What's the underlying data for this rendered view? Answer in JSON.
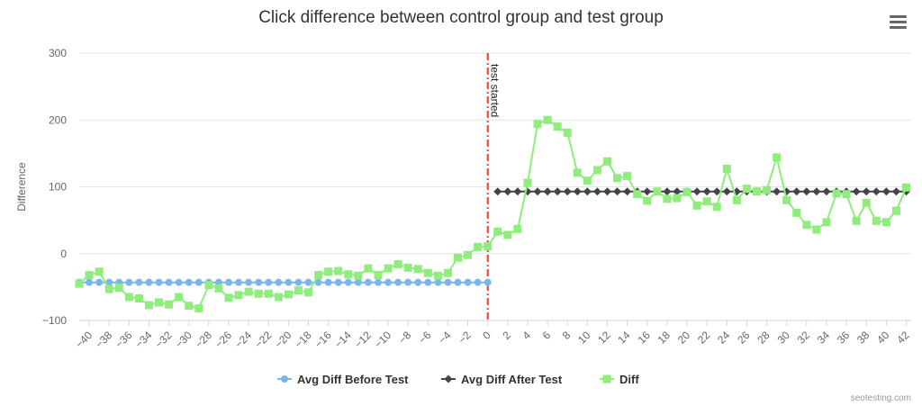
{
  "chart_data": {
    "type": "line",
    "title": "Click difference between control group and test group",
    "ylabel": "Difference",
    "xlabel": "",
    "xlim": [
      -41,
      42.5
    ],
    "ylim": [
      -100,
      300
    ],
    "yticks": [
      -100,
      0,
      100,
      200,
      300
    ],
    "xticks": [
      -40,
      -38,
      -36,
      -34,
      -32,
      -30,
      -28,
      -26,
      -24,
      -22,
      -20,
      -18,
      -16,
      -14,
      -12,
      -10,
      -8,
      -6,
      -4,
      -2,
      0,
      2,
      4,
      6,
      8,
      10,
      12,
      14,
      16,
      18,
      20,
      22,
      24,
      26,
      28,
      30,
      32,
      34,
      36,
      38,
      40,
      42
    ],
    "grid": true,
    "legend_position": "bottom",
    "plot_line": {
      "x": 0,
      "label": "test started",
      "color": "#e8412b"
    },
    "series": [
      {
        "name": "Avg Diff Before Test",
        "color": "#7cb5ec",
        "marker": "circle",
        "points": [
          [
            -41,
            -43
          ],
          [
            -40,
            -43
          ],
          [
            -39,
            -43
          ],
          [
            -38,
            -43
          ],
          [
            -37,
            -43
          ],
          [
            -36,
            -43
          ],
          [
            -35,
            -43
          ],
          [
            -34,
            -43
          ],
          [
            -33,
            -43
          ],
          [
            -32,
            -43
          ],
          [
            -31,
            -43
          ],
          [
            -30,
            -43
          ],
          [
            -29,
            -43
          ],
          [
            -28,
            -43
          ],
          [
            -27,
            -43
          ],
          [
            -26,
            -43
          ],
          [
            -25,
            -43
          ],
          [
            -24,
            -43
          ],
          [
            -23,
            -43
          ],
          [
            -22,
            -43
          ],
          [
            -21,
            -43
          ],
          [
            -20,
            -43
          ],
          [
            -19,
            -43
          ],
          [
            -18,
            -43
          ],
          [
            -17,
            -43
          ],
          [
            -16,
            -43
          ],
          [
            -15,
            -43
          ],
          [
            -14,
            -43
          ],
          [
            -13,
            -43
          ],
          [
            -12,
            -43
          ],
          [
            -11,
            -43
          ],
          [
            -10,
            -43
          ],
          [
            -9,
            -43
          ],
          [
            -8,
            -43
          ],
          [
            -7,
            -43
          ],
          [
            -6,
            -43
          ],
          [
            -5,
            -43
          ],
          [
            -4,
            -43
          ],
          [
            -3,
            -43
          ],
          [
            -2,
            -43
          ],
          [
            -1,
            -43
          ],
          [
            0,
            -43
          ]
        ]
      },
      {
        "name": "Avg Diff After Test",
        "color": "#434348",
        "marker": "diamond",
        "points": [
          [
            1,
            93
          ],
          [
            2,
            93
          ],
          [
            3,
            93
          ],
          [
            4,
            93
          ],
          [
            5,
            93
          ],
          [
            6,
            93
          ],
          [
            7,
            93
          ],
          [
            8,
            93
          ],
          [
            9,
            93
          ],
          [
            10,
            93
          ],
          [
            11,
            93
          ],
          [
            12,
            93
          ],
          [
            13,
            93
          ],
          [
            14,
            93
          ],
          [
            15,
            93
          ],
          [
            16,
            93
          ],
          [
            17,
            93
          ],
          [
            18,
            93
          ],
          [
            19,
            93
          ],
          [
            20,
            93
          ],
          [
            21,
            93
          ],
          [
            22,
            93
          ],
          [
            23,
            93
          ],
          [
            24,
            93
          ],
          [
            25,
            93
          ],
          [
            26,
            93
          ],
          [
            27,
            93
          ],
          [
            28,
            93
          ],
          [
            29,
            93
          ],
          [
            30,
            93
          ],
          [
            31,
            93
          ],
          [
            32,
            93
          ],
          [
            33,
            93
          ],
          [
            34,
            93
          ],
          [
            35,
            93
          ],
          [
            36,
            93
          ],
          [
            37,
            93
          ],
          [
            38,
            93
          ],
          [
            39,
            93
          ],
          [
            40,
            93
          ],
          [
            41,
            93
          ],
          [
            42,
            93
          ]
        ]
      },
      {
        "name": "Diff",
        "color": "#90ed7d",
        "marker": "square",
        "points": [
          [
            -41,
            -45
          ],
          [
            -40,
            -32
          ],
          [
            -39,
            -27
          ],
          [
            -38,
            -53
          ],
          [
            -37,
            -51
          ],
          [
            -36,
            -65
          ],
          [
            -35,
            -67
          ],
          [
            -34,
            -77
          ],
          [
            -33,
            -73
          ],
          [
            -32,
            -76
          ],
          [
            -31,
            -65
          ],
          [
            -30,
            -78
          ],
          [
            -29,
            -82
          ],
          [
            -28,
            -47
          ],
          [
            -27,
            -52
          ],
          [
            -26,
            -66
          ],
          [
            -25,
            -62
          ],
          [
            -24,
            -57
          ],
          [
            -23,
            -60
          ],
          [
            -22,
            -60
          ],
          [
            -21,
            -65
          ],
          [
            -20,
            -61
          ],
          [
            -19,
            -55
          ],
          [
            -18,
            -58
          ],
          [
            -17,
            -32
          ],
          [
            -16,
            -27
          ],
          [
            -15,
            -26
          ],
          [
            -14,
            -31
          ],
          [
            -13,
            -33
          ],
          [
            -12,
            -22
          ],
          [
            -11,
            -32
          ],
          [
            -10,
            -22
          ],
          [
            -9,
            -16
          ],
          [
            -8,
            -21
          ],
          [
            -7,
            -23
          ],
          [
            -6,
            -29
          ],
          [
            -5,
            -33
          ],
          [
            -4,
            -29
          ],
          [
            -3,
            -6
          ],
          [
            -2,
            -2
          ],
          [
            -1,
            10
          ],
          [
            0,
            11
          ],
          [
            1,
            33
          ],
          [
            2,
            28
          ],
          [
            3,
            37
          ],
          [
            4,
            106
          ],
          [
            5,
            194
          ],
          [
            6,
            200
          ],
          [
            7,
            190
          ],
          [
            8,
            181
          ],
          [
            9,
            121
          ],
          [
            10,
            109
          ],
          [
            11,
            125
          ],
          [
            12,
            138
          ],
          [
            13,
            113
          ],
          [
            14,
            116
          ],
          [
            15,
            89
          ],
          [
            16,
            79
          ],
          [
            17,
            93
          ],
          [
            18,
            82
          ],
          [
            19,
            83
          ],
          [
            20,
            92
          ],
          [
            21,
            72
          ],
          [
            22,
            78
          ],
          [
            23,
            70
          ],
          [
            24,
            127
          ],
          [
            25,
            80
          ],
          [
            26,
            97
          ],
          [
            27,
            93
          ],
          [
            28,
            95
          ],
          [
            29,
            144
          ],
          [
            30,
            80
          ],
          [
            31,
            61
          ],
          [
            32,
            43
          ],
          [
            33,
            36
          ],
          [
            34,
            47
          ],
          [
            35,
            90
          ],
          [
            36,
            89
          ],
          [
            37,
            49
          ],
          [
            38,
            76
          ],
          [
            39,
            49
          ],
          [
            40,
            47
          ],
          [
            41,
            64
          ],
          [
            42,
            99
          ]
        ]
      }
    ]
  },
  "menu": {
    "icon": "hamburger-menu-icon"
  },
  "credit": "seotesting.com"
}
